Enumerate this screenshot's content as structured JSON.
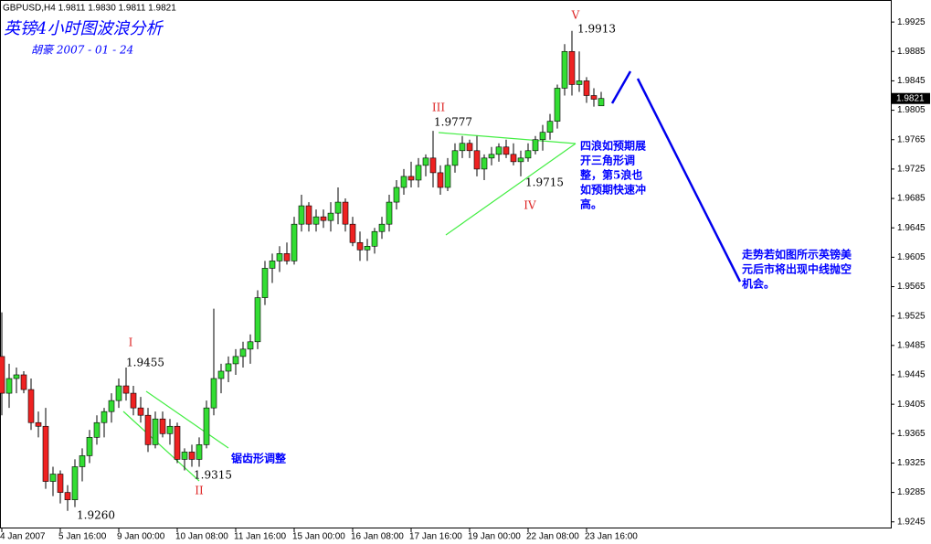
{
  "chart_data": {
    "type": "candlestick",
    "header": "GBPUSD,H4  1.9811 1.9830 1.9811 1.9821",
    "title": "英镑4小时图波浪分析",
    "subtitle": "胡豪   2007 - 01 - 24",
    "categories": [
      "4 Jan 2007",
      null,
      null,
      null,
      null,
      null,
      null,
      null,
      "5 Jan 16:00",
      null,
      null,
      null,
      null,
      null,
      null,
      null,
      "9 Jan 00:00",
      null,
      null,
      null,
      null,
      null,
      null,
      null,
      "10 Jan 08:00",
      null,
      null,
      null,
      null,
      null,
      null,
      null,
      "11 Jan 16:00",
      null,
      null,
      null,
      null,
      null,
      null,
      null,
      "15 Jan 00:00",
      null,
      null,
      null,
      null,
      null,
      null,
      null,
      "16 Jan 08:00",
      null,
      null,
      null,
      null,
      null,
      null,
      null,
      "17 Jan 16:00",
      null,
      null,
      null,
      null,
      null,
      null,
      null,
      "19 Jan 00:00",
      null,
      null,
      null,
      null,
      null,
      null,
      null,
      "22 Jan 08:00",
      null,
      null,
      null,
      null,
      null,
      null,
      null,
      "23 Jan 16:00",
      null,
      null
    ],
    "open": [
      1.947,
      1.942,
      1.944,
      1.9445,
      1.9425,
      1.938,
      1.9375,
      1.93,
      1.931,
      1.9285,
      1.9275,
      1.932,
      1.9335,
      1.936,
      1.938,
      1.9395,
      1.941,
      1.943,
      1.942,
      1.94,
      1.939,
      1.935,
      1.9385,
      1.9365,
      1.9375,
      1.933,
      1.934,
      1.933,
      1.935,
      1.94,
      1.944,
      1.945,
      1.946,
      1.947,
      1.948,
      1.949,
      1.955,
      1.959,
      1.96,
      1.961,
      1.96,
      1.965,
      1.9675,
      1.965,
      1.966,
      1.9655,
      1.9665,
      1.968,
      1.965,
      1.9625,
      1.9615,
      1.962,
      1.964,
      1.965,
      1.968,
      1.97,
      1.9715,
      1.971,
      1.973,
      1.974,
      1.972,
      1.97,
      1.973,
      1.975,
      1.976,
      1.975,
      1.9725,
      1.974,
      1.9745,
      1.9755,
      1.9745,
      1.9735,
      1.974,
      1.975,
      1.9765,
      1.9775,
      1.979,
      1.9835,
      1.9885,
      1.984,
      1.9845,
      1.9825,
      1.9811
    ],
    "high": [
      1.953,
      1.946,
      1.9455,
      1.945,
      1.944,
      1.9395,
      1.94,
      1.932,
      1.9315,
      1.9295,
      1.933,
      1.9345,
      1.937,
      1.939,
      1.94,
      1.942,
      1.944,
      1.9455,
      1.943,
      1.9415,
      1.94,
      1.9395,
      1.9395,
      1.9385,
      1.938,
      1.9345,
      1.935,
      1.936,
      1.941,
      1.9535,
      1.946,
      1.947,
      1.948,
      1.949,
      1.95,
      1.956,
      1.96,
      1.961,
      1.962,
      1.9625,
      1.966,
      1.969,
      1.968,
      1.967,
      1.967,
      1.968,
      1.97,
      1.9685,
      1.966,
      1.964,
      1.963,
      1.9645,
      1.966,
      1.969,
      1.971,
      1.9725,
      1.9735,
      1.974,
      1.9745,
      1.9777,
      1.973,
      1.974,
      1.976,
      1.977,
      1.9765,
      1.977,
      1.9745,
      1.9755,
      1.976,
      1.9765,
      1.976,
      1.975,
      1.976,
      1.977,
      1.9785,
      1.98,
      1.984,
      1.9895,
      1.9913,
      1.9885,
      1.985,
      1.9835,
      1.983
    ],
    "low": [
      1.939,
      1.94,
      1.942,
      1.942,
      1.937,
      1.936,
      1.929,
      1.928,
      1.927,
      1.926,
      1.9265,
      1.93,
      1.9325,
      1.935,
      1.936,
      1.938,
      1.94,
      1.941,
      1.939,
      1.938,
      1.934,
      1.9345,
      1.936,
      1.935,
      1.9325,
      1.9315,
      1.932,
      1.932,
      1.9345,
      1.939,
      1.942,
      1.9435,
      1.9445,
      1.9455,
      1.946,
      1.948,
      1.954,
      1.957,
      1.9585,
      1.9595,
      1.9595,
      1.964,
      1.964,
      1.964,
      1.9645,
      1.964,
      1.965,
      1.964,
      1.962,
      1.96,
      1.96,
      1.961,
      1.963,
      1.964,
      1.967,
      1.969,
      1.97,
      1.97,
      1.9715,
      1.97,
      1.969,
      1.9695,
      1.972,
      1.974,
      1.974,
      1.9715,
      1.971,
      1.973,
      1.9735,
      1.974,
      1.973,
      1.9715,
      1.9735,
      1.9745,
      1.975,
      1.9765,
      1.978,
      1.9825,
      1.9825,
      1.983,
      1.9815,
      1.981,
      1.9811
    ],
    "close": [
      1.942,
      1.944,
      1.9445,
      1.9425,
      1.938,
      1.9375,
      1.93,
      1.931,
      1.9285,
      1.9275,
      1.932,
      1.9335,
      1.936,
      1.938,
      1.9395,
      1.941,
      1.943,
      1.942,
      1.94,
      1.939,
      1.935,
      1.9385,
      1.9365,
      1.9375,
      1.933,
      1.934,
      1.933,
      1.935,
      1.94,
      1.944,
      1.945,
      1.946,
      1.947,
      1.948,
      1.949,
      1.955,
      1.959,
      1.96,
      1.961,
      1.96,
      1.965,
      1.9675,
      1.965,
      1.966,
      1.9655,
      1.9665,
      1.968,
      1.965,
      1.9625,
      1.9615,
      1.962,
      1.964,
      1.965,
      1.968,
      1.97,
      1.9715,
      1.971,
      1.973,
      1.974,
      1.972,
      1.97,
      1.973,
      1.975,
      1.976,
      1.975,
      1.9725,
      1.974,
      1.9745,
      1.9755,
      1.9745,
      1.9735,
      1.974,
      1.975,
      1.9765,
      1.9775,
      1.979,
      1.9835,
      1.9885,
      1.984,
      1.9845,
      1.9825,
      1.982,
      1.9821
    ],
    "up_color": "#33dd33",
    "down_color": "#ee2222",
    "ylim": [
      1.9236,
      1.9955
    ],
    "yticks": [
      {
        "value": 1.9925,
        "label": "1.9925"
      },
      {
        "value": 1.9885,
        "label": "1.9885"
      },
      {
        "value": 1.9845,
        "label": "1.9845"
      },
      {
        "value": 1.9805,
        "label": "1.9805"
      },
      {
        "value": 1.9765,
        "label": "1.9765"
      },
      {
        "value": 1.9725,
        "label": "1.9725"
      },
      {
        "value": 1.9685,
        "label": "1.9685"
      },
      {
        "value": 1.9645,
        "label": "1.9645"
      },
      {
        "value": 1.9605,
        "label": "1.9605"
      },
      {
        "value": 1.9565,
        "label": "1.9565"
      },
      {
        "value": 1.9525,
        "label": "1.9525"
      },
      {
        "value": 1.9485,
        "label": "1.9485"
      },
      {
        "value": 1.9445,
        "label": "1.9445"
      },
      {
        "value": 1.9405,
        "label": "1.9405"
      },
      {
        "value": 1.9365,
        "label": "1.9365"
      },
      {
        "value": 1.9325,
        "label": "1.9325"
      },
      {
        "value": 1.9285,
        "label": "1.9285"
      },
      {
        "value": 1.9245,
        "label": "1.9245"
      }
    ],
    "current_price": {
      "value": 1.9821,
      "label": "1.9821"
    },
    "wave_labels": [
      "I",
      "II",
      "III",
      "IV",
      "V"
    ],
    "price_labels": [
      "1.9455",
      "1.9315",
      "1.9260",
      "1.9777",
      "1.9715",
      "1.9913"
    ],
    "notes": [
      [
        "锯齿形调整"
      ],
      [
        "四浪如预期展",
        "开三角形调",
        "整，第5浪也",
        "如预期快速冲",
        "高。"
      ],
      [
        "走势若如图所示英镑美",
        "元后市将出现中线抛空",
        "机会。"
      ]
    ]
  }
}
